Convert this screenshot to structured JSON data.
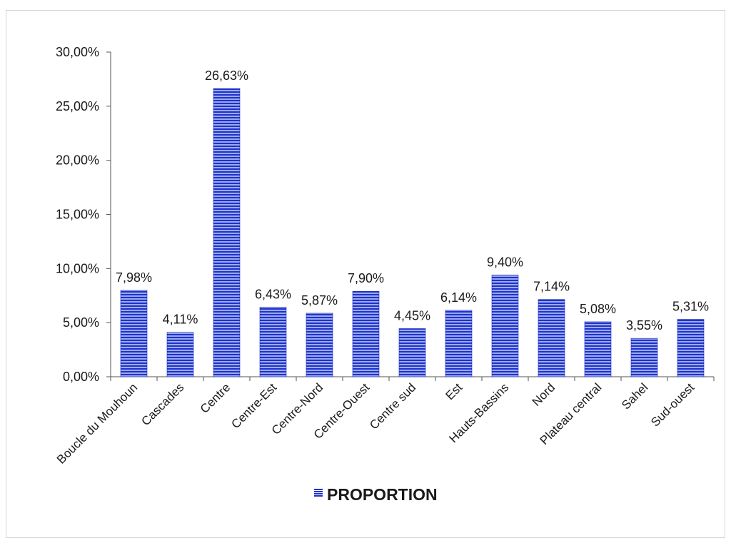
{
  "chart_data": {
    "type": "bar",
    "categories": [
      "Boucle du Mouhoun",
      "Cascades",
      "Centre",
      "Centre-Est",
      "Centre-Nord",
      "Centre-Ouest",
      "Centre sud",
      "Est",
      "Hauts-Bassins",
      "Nord",
      "Plateau central",
      "Sahel",
      "Sud-ouest"
    ],
    "series": [
      {
        "name": "PROPORTION",
        "values": [
          7.98,
          4.11,
          26.63,
          6.43,
          5.87,
          7.9,
          4.45,
          6.14,
          9.4,
          7.14,
          5.08,
          3.55,
          5.31
        ],
        "data_labels": [
          "7,98%",
          "4,11%",
          "26,63%",
          "6,43%",
          "5,87%",
          "7,90%",
          "4,45%",
          "6,14%",
          "9,40%",
          "7,14%",
          "5,08%",
          "3,55%",
          "5,31%"
        ],
        "color": "#2a3fd6"
      }
    ],
    "ylim": [
      0,
      30
    ],
    "yticks": [
      0,
      5,
      10,
      15,
      20,
      25,
      30
    ],
    "ytick_labels": [
      "0,00%",
      "5,00%",
      "10,00%",
      "15,00%",
      "20,00%",
      "25,00%",
      "30,00%"
    ],
    "title": "",
    "xlabel": "",
    "ylabel": "",
    "grid": false,
    "legend_position": "bottom"
  }
}
